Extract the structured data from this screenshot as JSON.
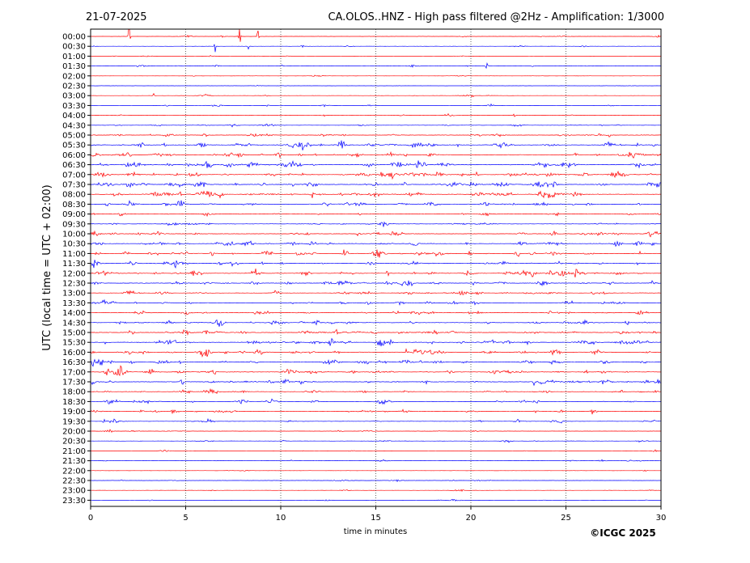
{
  "header": {
    "date": "21-07-2025",
    "title": "CA.OLOS..HNZ - High pass filtered @2Hz - Amplification: 1/3000"
  },
  "footer": {
    "copyright": "©ICGC 2025"
  },
  "colors": {
    "trace_a": "#ff0000",
    "trace_b": "#0000ff",
    "grid": "#000000"
  },
  "chart_data": {
    "type": "line",
    "title": "CA.OLOS..HNZ - High pass filtered @2Hz - Amplification: 1/3000",
    "xlabel": "time in minutes",
    "ylabel": "UTC (local time = UTC + 02:00)",
    "xlim": [
      0,
      30
    ],
    "x_ticks": [
      0,
      5,
      10,
      15,
      20,
      25,
      30
    ],
    "grid": "vertical dotted lines at x = 5, 10, 15, 20, 25",
    "rows": [
      "00:00",
      "00:30",
      "01:00",
      "01:30",
      "02:00",
      "02:30",
      "03:00",
      "03:30",
      "04:00",
      "04:30",
      "05:00",
      "05:30",
      "06:00",
      "06:30",
      "07:00",
      "07:30",
      "08:00",
      "08:30",
      "09:00",
      "09:30",
      "10:00",
      "10:30",
      "11:00",
      "11:30",
      "12:00",
      "12:30",
      "13:00",
      "13:30",
      "14:00",
      "14:30",
      "15:00",
      "15:30",
      "16:00",
      "16:30",
      "17:00",
      "17:30",
      "18:00",
      "18:30",
      "19:00",
      "19:30",
      "20:00",
      "20:30",
      "21:00",
      "21:30",
      "22:00",
      "22:30",
      "23:00",
      "23:30"
    ],
    "row_activity": [
      0.1,
      0.1,
      0.1,
      0.15,
      0.05,
      0.05,
      0.1,
      0.15,
      0.15,
      0.25,
      0.45,
      0.75,
      0.8,
      0.9,
      0.85,
      0.8,
      0.8,
      0.7,
      0.35,
      0.45,
      0.6,
      0.65,
      0.7,
      0.65,
      0.75,
      0.65,
      0.5,
      0.5,
      0.55,
      0.6,
      0.7,
      0.75,
      0.7,
      0.7,
      0.7,
      0.7,
      0.55,
      0.55,
      0.45,
      0.3,
      0.2,
      0.2,
      0.1,
      0.15,
      0.05,
      0.15,
      0.1,
      0.1
    ],
    "spikes": [
      {
        "row": 0,
        "x": 2.05,
        "amp": 2.5
      },
      {
        "row": 1,
        "x": 6.55,
        "amp": 1.2
      },
      {
        "row": 0,
        "x": 7.85,
        "amp": 4.0
      },
      {
        "row": 0,
        "x": 8.8,
        "amp": 2.2
      },
      {
        "row": 1,
        "x": 8.3,
        "amp": 1.0
      },
      {
        "row": 3,
        "x": 20.85,
        "amp": 0.6
      },
      {
        "row": 6,
        "x": 3.3,
        "amp": 0.4
      },
      {
        "row": 6,
        "x": 20.1,
        "amp": 0.5
      },
      {
        "row": 7,
        "x": 9.3,
        "amp": 0.5
      },
      {
        "row": 8,
        "x": 22.3,
        "amp": 0.45
      },
      {
        "row": 10,
        "x": 27.3,
        "amp": 0.6
      },
      {
        "row": 11,
        "x": 19.3,
        "amp": 0.5
      },
      {
        "row": 12,
        "x": 7.4,
        "amp": 0.6
      },
      {
        "row": 14,
        "x": 16.2,
        "amp": 0.5
      },
      {
        "row": 17,
        "x": 2.0,
        "amp": 0.6
      },
      {
        "row": 22,
        "x": 22.5,
        "amp": 0.7
      },
      {
        "row": 24,
        "x": 15.6,
        "amp": 0.5
      },
      {
        "row": 27,
        "x": 2.4,
        "amp": 0.5
      },
      {
        "row": 31,
        "x": 8.3,
        "amp": 0.5
      },
      {
        "row": 32,
        "x": 16.6,
        "amp": 0.5
      },
      {
        "row": 33,
        "x": 12.3,
        "amp": 0.5
      },
      {
        "row": 35,
        "x": 23.3,
        "amp": 0.6
      },
      {
        "row": 37,
        "x": 15.3,
        "amp": 0.5
      },
      {
        "row": 38,
        "x": 26.4,
        "amp": 0.6
      },
      {
        "row": 39,
        "x": 0.7,
        "amp": 0.4
      }
    ]
  }
}
